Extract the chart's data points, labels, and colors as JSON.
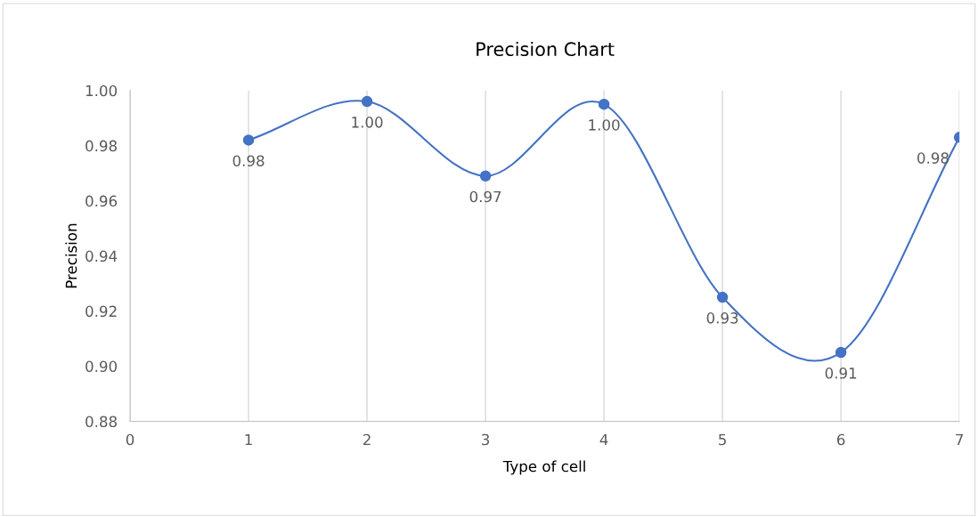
{
  "chart_data": {
    "type": "line",
    "title": "Precision Chart",
    "xlabel": "Type of cell",
    "ylabel": "Precision",
    "x": [
      1,
      2,
      3,
      4,
      5,
      6,
      7
    ],
    "series": [
      {
        "color": "#4472c4",
        "values": [
          0.982,
          0.996,
          0.969,
          0.995,
          0.925,
          0.905,
          0.983
        ],
        "value_labels": [
          "0.98",
          "1.00",
          "0.97",
          "1.00",
          "0.93",
          "0.91",
          "0.98"
        ]
      }
    ],
    "xlim": [
      0,
      7
    ],
    "xticks": [
      0,
      1,
      2,
      3,
      4,
      5,
      6,
      7
    ],
    "ylim": [
      0.88,
      1.0
    ],
    "yticks": [
      {
        "value": 0.88,
        "label": "0.88"
      },
      {
        "value": 0.9,
        "label": "0.90"
      },
      {
        "value": 0.92,
        "label": "0.92"
      },
      {
        "value": 0.94,
        "label": "0.94"
      },
      {
        "value": 0.96,
        "label": "0.96"
      },
      {
        "value": 0.98,
        "label": "0.98"
      },
      {
        "value": 1.0,
        "label": "1.00"
      }
    ],
    "grid": "x",
    "marker": "circle",
    "line_style": "solid",
    "legend": false
  }
}
